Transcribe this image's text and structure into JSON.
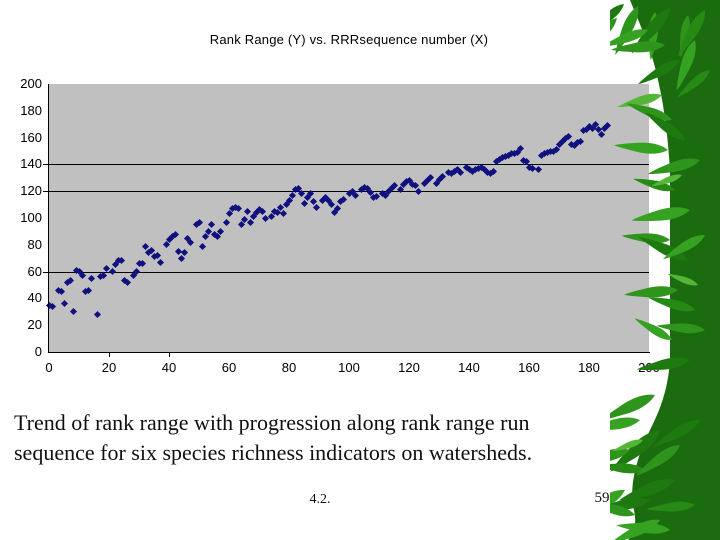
{
  "caption": {
    "line1": "Trend of rank range with progression along rank range run",
    "line2": "sequence for six species richness indicators on watersheds."
  },
  "footer": {
    "section": "4.2.",
    "page": "59"
  },
  "decor": {
    "leaf_greens": [
      "#2f941b",
      "#1e7a10",
      "#35a321",
      "#54b636",
      "#145a0a"
    ],
    "background": "#ffffff"
  },
  "chart_data": {
    "type": "scatter",
    "title": "Rank Range (Y) vs. RRRsequence number (X)",
    "xlabel": "",
    "ylabel": "",
    "xlim": [
      0,
      200
    ],
    "ylim": [
      0,
      200
    ],
    "x_ticks": [
      0,
      20,
      40,
      60,
      80,
      100,
      120,
      140,
      160,
      180,
      200
    ],
    "y_ticks": [
      0,
      20,
      40,
      60,
      80,
      100,
      120,
      140,
      160,
      180,
      200
    ],
    "gridlines_y": [
      60,
      120,
      140
    ],
    "y_tick_marks": [
      60,
      120,
      140
    ],
    "x_tick_marks": [
      20,
      40
    ],
    "grid": "partial",
    "legend": "none",
    "marker": "diamond",
    "marker_color": "#10107e",
    "plot_bg": "#c0c0c0",
    "points": [
      [
        0,
        35
      ],
      [
        1,
        34
      ],
      [
        3,
        46
      ],
      [
        4,
        45
      ],
      [
        5,
        36
      ],
      [
        6,
        52
      ],
      [
        7,
        53
      ],
      [
        8,
        30
      ],
      [
        9,
        61
      ],
      [
        10,
        60
      ],
      [
        11,
        57
      ],
      [
        12,
        45
      ],
      [
        13,
        46
      ],
      [
        14,
        55
      ],
      [
        16,
        28
      ],
      [
        17,
        56
      ],
      [
        18,
        57
      ],
      [
        19,
        62
      ],
      [
        21,
        60
      ],
      [
        22,
        65
      ],
      [
        23,
        68
      ],
      [
        24,
        68
      ],
      [
        25,
        53
      ],
      [
        26,
        52
      ],
      [
        28,
        57
      ],
      [
        29,
        60
      ],
      [
        30,
        66
      ],
      [
        31,
        66
      ],
      [
        32,
        79
      ],
      [
        33,
        74
      ],
      [
        34,
        76
      ],
      [
        35,
        71
      ],
      [
        36,
        72
      ],
      [
        37,
        67
      ],
      [
        39,
        80
      ],
      [
        40,
        84
      ],
      [
        41,
        86
      ],
      [
        42,
        88
      ],
      [
        43,
        75
      ],
      [
        44,
        70
      ],
      [
        45,
        74
      ],
      [
        46,
        85
      ],
      [
        47,
        82
      ],
      [
        49,
        95
      ],
      [
        50,
        97
      ],
      [
        51,
        79
      ],
      [
        52,
        86
      ],
      [
        53,
        90
      ],
      [
        54,
        95
      ],
      [
        55,
        88
      ],
      [
        56,
        86
      ],
      [
        57,
        90
      ],
      [
        59,
        97
      ],
      [
        60,
        103
      ],
      [
        61,
        107
      ],
      [
        62,
        108
      ],
      [
        63,
        107
      ],
      [
        64,
        95
      ],
      [
        65,
        99
      ],
      [
        66,
        105
      ],
      [
        67,
        97
      ],
      [
        68,
        101
      ],
      [
        69,
        104
      ],
      [
        70,
        106
      ],
      [
        71,
        105
      ],
      [
        72,
        100
      ],
      [
        74,
        101
      ],
      [
        75,
        105
      ],
      [
        76,
        104
      ],
      [
        77,
        108
      ],
      [
        78,
        103
      ],
      [
        79,
        110
      ],
      [
        80,
        113
      ],
      [
        81,
        117
      ],
      [
        82,
        121
      ],
      [
        83,
        122
      ],
      [
        84,
        118
      ],
      [
        85,
        111
      ],
      [
        86,
        115
      ],
      [
        87,
        118
      ],
      [
        88,
        112
      ],
      [
        89,
        108
      ],
      [
        91,
        113
      ],
      [
        92,
        115
      ],
      [
        93,
        113
      ],
      [
        94,
        110
      ],
      [
        95,
        104
      ],
      [
        96,
        107
      ],
      [
        97,
        112
      ],
      [
        98,
        114
      ],
      [
        100,
        118
      ],
      [
        101,
        120
      ],
      [
        102,
        117
      ],
      [
        104,
        121
      ],
      [
        105,
        123
      ],
      [
        106,
        122
      ],
      [
        107,
        119
      ],
      [
        108,
        115
      ],
      [
        109,
        116
      ],
      [
        111,
        118
      ],
      [
        112,
        117
      ],
      [
        113,
        120
      ],
      [
        114,
        122
      ],
      [
        115,
        124
      ],
      [
        117,
        121
      ],
      [
        118,
        125
      ],
      [
        119,
        127
      ],
      [
        120,
        128
      ],
      [
        121,
        125
      ],
      [
        122,
        124
      ],
      [
        123,
        120
      ],
      [
        125,
        126
      ],
      [
        126,
        128
      ],
      [
        127,
        130
      ],
      [
        129,
        126
      ],
      [
        130,
        129
      ],
      [
        131,
        131
      ],
      [
        133,
        134
      ],
      [
        134,
        133
      ],
      [
        135,
        135
      ],
      [
        136,
        136
      ],
      [
        137,
        134
      ],
      [
        139,
        138
      ],
      [
        140,
        136
      ],
      [
        141,
        135
      ],
      [
        142,
        136
      ],
      [
        143,
        137
      ],
      [
        144,
        138
      ],
      [
        145,
        136
      ],
      [
        146,
        134
      ],
      [
        147,
        133
      ],
      [
        148,
        135
      ],
      [
        149,
        142
      ],
      [
        150,
        144
      ],
      [
        151,
        145
      ],
      [
        152,
        146
      ],
      [
        153,
        147
      ],
      [
        154,
        148
      ],
      [
        155,
        148
      ],
      [
        156,
        149
      ],
      [
        157,
        152
      ],
      [
        158,
        143
      ],
      [
        159,
        142
      ],
      [
        160,
        138
      ],
      [
        161,
        137
      ],
      [
        163,
        136
      ],
      [
        164,
        147
      ],
      [
        165,
        148
      ],
      [
        166,
        149
      ],
      [
        167,
        150
      ],
      [
        168,
        150
      ],
      [
        169,
        151
      ],
      [
        170,
        155
      ],
      [
        171,
        157
      ],
      [
        172,
        159
      ],
      [
        173,
        161
      ],
      [
        174,
        155
      ],
      [
        175,
        154
      ],
      [
        176,
        156
      ],
      [
        177,
        157
      ],
      [
        178,
        165
      ],
      [
        179,
        166
      ],
      [
        180,
        168
      ],
      [
        181,
        167
      ],
      [
        182,
        170
      ],
      [
        183,
        166
      ],
      [
        184,
        162
      ],
      [
        185,
        167
      ],
      [
        186,
        169
      ]
    ]
  }
}
